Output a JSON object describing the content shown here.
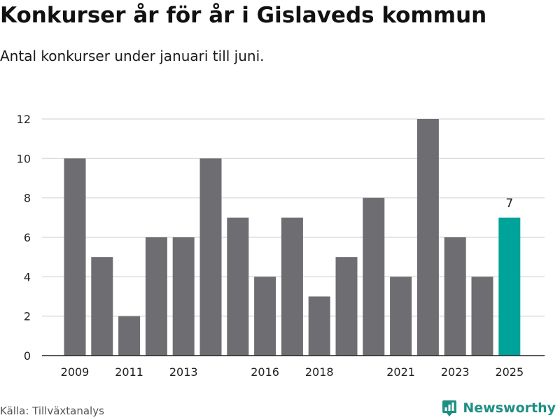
{
  "title": "Konkurser år för år i Gislaveds kommun",
  "subtitle": "Antal konkurser under januari till juni.",
  "source": "Källa: Tillväxtanalys",
  "brand": {
    "name": "Newsworthy",
    "icon": "newsworthy-logo-icon",
    "color": "#1f8f84"
  },
  "colors": {
    "bar": "#6e6d72",
    "highlight": "#00a39a",
    "grid": "#dddddd",
    "axis": "#222222"
  },
  "chart_data": {
    "type": "bar",
    "title": "Konkurser år för år i Gislaveds kommun",
    "subtitle": "Antal konkurser under januari till juni.",
    "categories": [
      "2009",
      "2010",
      "2011",
      "2012",
      "2013",
      "2014",
      "2015",
      "2016",
      "2017",
      "2018",
      "2019",
      "2020",
      "2021",
      "2022",
      "2023",
      "2024",
      "2025"
    ],
    "values": [
      10,
      5,
      2,
      6,
      6,
      10,
      7,
      4,
      7,
      3,
      5,
      8,
      4,
      12,
      6,
      4,
      7
    ],
    "x_tick_labels": [
      "2009",
      "2011",
      "2013",
      "2016",
      "2018",
      "2021",
      "2023",
      "2025"
    ],
    "y_ticks": [
      0,
      2,
      4,
      6,
      8,
      10,
      12
    ],
    "ylim": [
      0,
      12
    ],
    "highlight": {
      "category": "2025",
      "label": "7"
    },
    "grid": true,
    "legend": "none"
  }
}
